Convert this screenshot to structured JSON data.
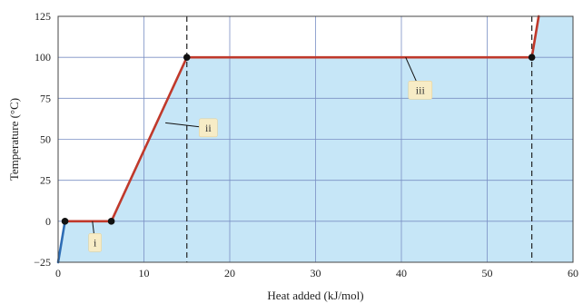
{
  "chart_data": {
    "type": "line",
    "title": "",
    "xlabel": "Heat added (kJ/mol)",
    "ylabel": "Temperature (°C)",
    "xlim": [
      0,
      60
    ],
    "ylim": [
      -25,
      125
    ],
    "x_ticks": [
      0,
      10,
      20,
      30,
      40,
      50,
      60
    ],
    "y_ticks": [
      -25,
      0,
      25,
      50,
      75,
      100,
      125
    ],
    "grid": true,
    "series": [
      {
        "color": "#c0392b",
        "points": [
          [
            0,
            -25
          ],
          [
            0.8,
            0
          ],
          [
            6.2,
            0
          ],
          [
            15,
            100
          ],
          [
            55.2,
            100
          ],
          [
            56,
            125
          ]
        ]
      }
    ],
    "markers": [
      [
        0.8,
        0
      ],
      [
        6.2,
        0
      ],
      [
        15,
        100
      ],
      [
        55.2,
        100
      ]
    ],
    "vlines": [
      15,
      55.2
    ],
    "annotations": [
      {
        "text": "i",
        "x": 4,
        "y": 0,
        "label_x": 4.3,
        "label_y": -13
      },
      {
        "text": "ii",
        "x": 12.5,
        "y": 60,
        "label_x": 17.5,
        "label_y": 57
      },
      {
        "text": "iii",
        "x": 40.5,
        "y": 100,
        "label_x": 42.2,
        "label_y": 80
      }
    ]
  },
  "colors": {
    "fill": "#c6e6f7",
    "grid": "#7a8fc4",
    "line_highlight": "#c0392b",
    "line_segment_blue": "#2e6db5",
    "marker": "#111111"
  }
}
